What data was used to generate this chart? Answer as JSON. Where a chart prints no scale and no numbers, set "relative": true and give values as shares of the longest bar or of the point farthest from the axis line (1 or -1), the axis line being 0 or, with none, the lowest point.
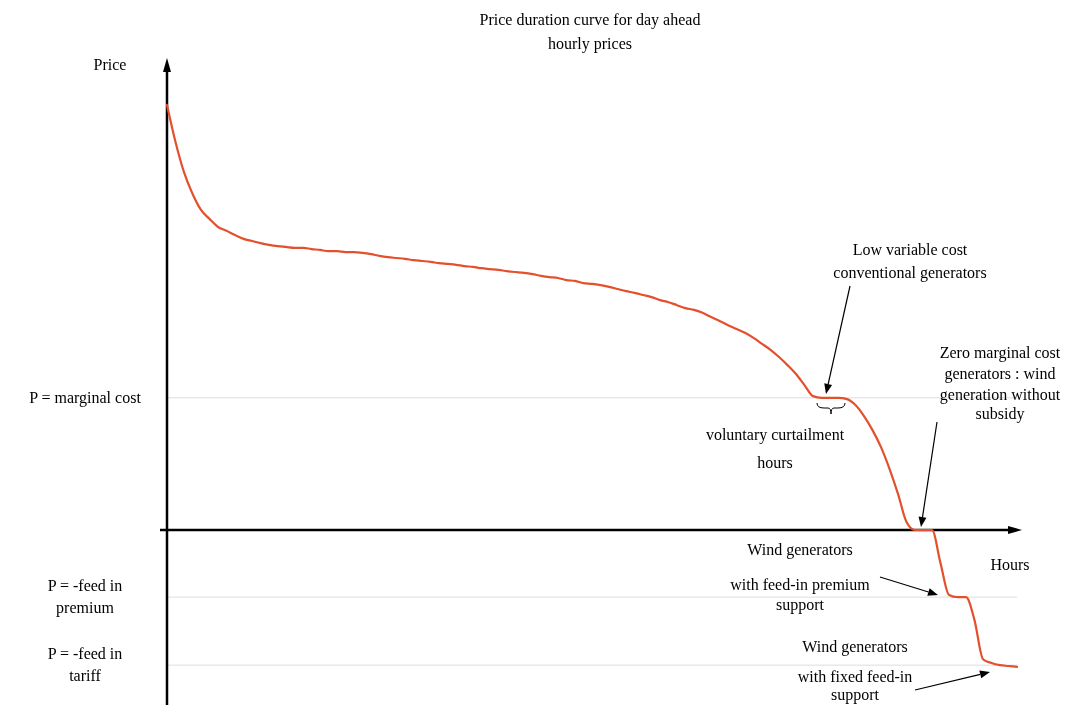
{
  "chart_data": {
    "type": "line",
    "title": "Price duration curve for day ahead hourly prices",
    "xlabel": "Hours",
    "ylabel": "Price",
    "relative": true,
    "categories": [
      null,
      null,
      null,
      null,
      null,
      null,
      null,
      null,
      null,
      null,
      null,
      null,
      null,
      null,
      null,
      null,
      null,
      null,
      null,
      null,
      null,
      null,
      null,
      null,
      null,
      null,
      null,
      null,
      null,
      null,
      null,
      null,
      null,
      null,
      null,
      null,
      null,
      null,
      null,
      null,
      null,
      null,
      null,
      null,
      null,
      null,
      null,
      null,
      null,
      null,
      null,
      null,
      null,
      null,
      null,
      null,
      null,
      null,
      null,
      null,
      null,
      null,
      null,
      null,
      null,
      null,
      null,
      null,
      null,
      null,
      null,
      null,
      null,
      null,
      null,
      null,
      null,
      null,
      null,
      null,
      null,
      null,
      null,
      null,
      null,
      null,
      null,
      null,
      null,
      null,
      null,
      null,
      null,
      null,
      null,
      null,
      null,
      null,
      null,
      null,
      null
    ],
    "series": [
      {
        "color": "#e4502c",
        "values": [
          1.0,
          0.913,
          0.842,
          0.791,
          0.753,
          0.732,
          0.713,
          0.704,
          0.694,
          0.685,
          0.68,
          0.675,
          0.671,
          0.668,
          0.666,
          0.664,
          0.664,
          0.661,
          0.659,
          0.656,
          0.656,
          0.654,
          0.654,
          0.652,
          0.649,
          0.645,
          0.642,
          0.64,
          0.638,
          0.635,
          0.633,
          0.631,
          0.628,
          0.626,
          0.624,
          0.621,
          0.619,
          0.616,
          0.614,
          0.612,
          0.609,
          0.607,
          0.605,
          0.602,
          0.598,
          0.595,
          0.593,
          0.588,
          0.586,
          0.581,
          0.579,
          0.576,
          0.572,
          0.567,
          0.562,
          0.558,
          0.553,
          0.548,
          0.541,
          0.536,
          0.529,
          0.522,
          0.518,
          0.511,
          0.501,
          0.492,
          0.482,
          0.473,
          0.464,
          0.452,
          0.438,
          0.424,
          0.407,
          0.388,
          0.367,
          0.341,
          0.315,
          0.311,
          0.311,
          0.311,
          0.308,
          0.294,
          0.268,
          0.235,
          0.195,
          0.144,
          0.085,
          0.019,
          0.0,
          0.0,
          0.0,
          -0.078,
          -0.153,
          -0.158,
          -0.158,
          -0.212,
          -0.304,
          -0.313,
          -0.318,
          -0.32,
          -0.322
        ]
      }
    ],
    "ref_lines": [
      {
        "axis": "y",
        "value": 0.311,
        "label": "P = marginal cost",
        "color": "#dddddd"
      },
      {
        "axis": "y",
        "value": -0.158,
        "label": "P = -feed in premium",
        "color": "#dddddd"
      },
      {
        "axis": "y",
        "value": -0.318,
        "label": "P = -feed in tariff",
        "color": "#dddddd"
      }
    ],
    "annotations": [
      "Low variable cost conventional generators",
      "voluntary curtailment hours",
      "Zero marginal cost generators : wind generation without subsidy",
      "Wind generators with feed-in premium support",
      "Wind generators with fixed feed-in support"
    ]
  }
}
